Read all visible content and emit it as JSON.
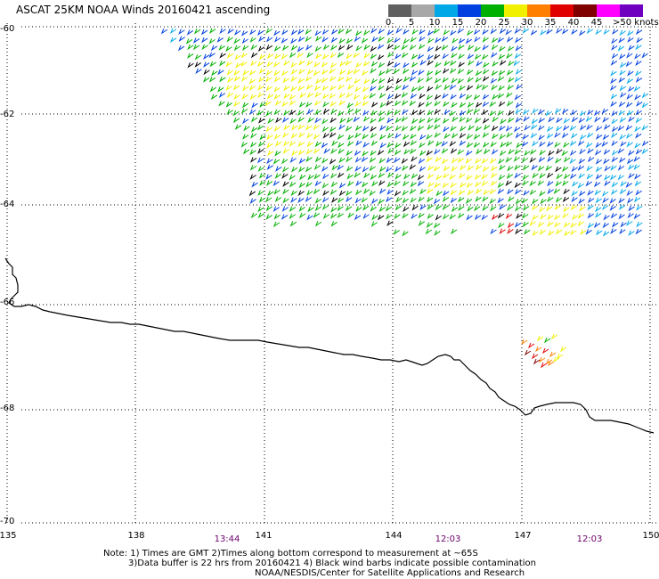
{
  "title": "ASCAT 25KM NOAA Winds 20160421 ascending",
  "legend": {
    "unit": "knots",
    "bins": [
      {
        "label": "0",
        "color": "#606060"
      },
      {
        "label": "5",
        "color": "#a8a8a8"
      },
      {
        "label": "10",
        "color": "#00a8e8"
      },
      {
        "label": "15",
        "color": "#0040e0"
      },
      {
        "label": "20",
        "color": "#00b000"
      },
      {
        "label": "25",
        "color": "#f0f000"
      },
      {
        "label": "30",
        "color": "#ff8000"
      },
      {
        "label": "35",
        "color": "#e00000"
      },
      {
        "label": "40",
        "color": "#800000"
      },
      {
        "label": "45",
        "color": "#ff00ff"
      },
      {
        "label": ">50",
        "color": "#7000c0"
      }
    ],
    "last_color": "#400080"
  },
  "latitudes": [
    "-60",
    "-62",
    "-64",
    "-66",
    "-68",
    "-70"
  ],
  "longitudes": [
    "135",
    "138",
    "141",
    "144",
    "147",
    "150"
  ],
  "times": [
    "13:44",
    "12:03",
    "12:03"
  ],
  "notes": [
    "Note: 1) Times are GMT 2)Times along bottom correspond to measurement at ~65S",
    "3)Data buffer is 22 hrs from 20160421 4) Black wind barbs indicate possible contamination",
    "NOAA/NESDIS/Center for Satellite Applications and Research"
  ]
}
